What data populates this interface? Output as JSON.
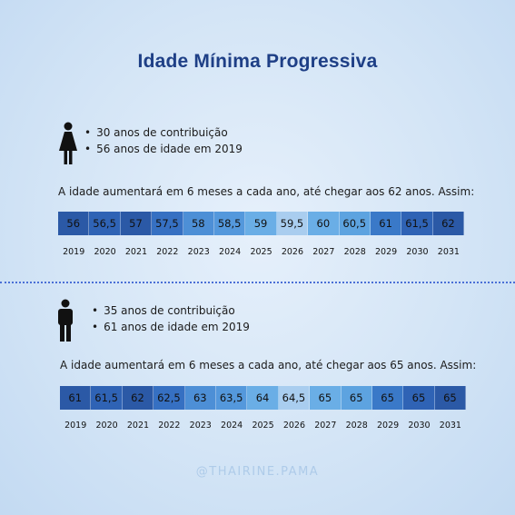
{
  "title": "Idade Mínima Progressiva",
  "sections": [
    {
      "icon": "woman-icon",
      "bullets": [
        "30 anos de contribuição",
        "56 anos de idade em 2019"
      ],
      "sentence": "A idade aumentará em 6 meses a cada ano, até chegar aos 62 anos. Assim:",
      "values": [
        "56",
        "56,5",
        "57",
        "57,5",
        "58",
        "58,5",
        "59",
        "59,5",
        "60",
        "60,5",
        "61",
        "61,5",
        "62"
      ],
      "colors": [
        "#2b59a6",
        "#2f63b5",
        "#2b59a6",
        "#3670c2",
        "#4d8fd6",
        "#5498dc",
        "#6aaee6",
        "#a9cdef",
        "#6aaee6",
        "#5da3e0",
        "#3a79c8",
        "#2f63b5",
        "#2b59a6"
      ],
      "years": [
        "2019",
        "2020",
        "2021",
        "2022",
        "2023",
        "2024",
        "2025",
        "2026",
        "2027",
        "2028",
        "2029",
        "2030",
        "2031"
      ]
    },
    {
      "icon": "man-icon",
      "bullets": [
        "35 anos de contribuição",
        "61 anos de idade em 2019"
      ],
      "sentence": "A idade aumentará em 6 meses a cada ano, até chegar aos 65 anos. Assim:",
      "values": [
        "61",
        "61,5",
        "62",
        "62,5",
        "63",
        "63,5",
        "64",
        "64,5",
        "65",
        "65",
        "65",
        "65",
        "65"
      ],
      "colors": [
        "#2b59a6",
        "#2f63b5",
        "#2b59a6",
        "#3670c2",
        "#4d8fd6",
        "#5498dc",
        "#6aaee6",
        "#a9cdef",
        "#6aaee6",
        "#5da3e0",
        "#3a79c8",
        "#2f63b5",
        "#2b59a6"
      ],
      "years": [
        "2019",
        "2020",
        "2021",
        "2022",
        "2023",
        "2024",
        "2025",
        "2026",
        "2027",
        "2028",
        "2029",
        "2030",
        "2031"
      ]
    }
  ],
  "footer": "@THAIRINE.PAMA"
}
